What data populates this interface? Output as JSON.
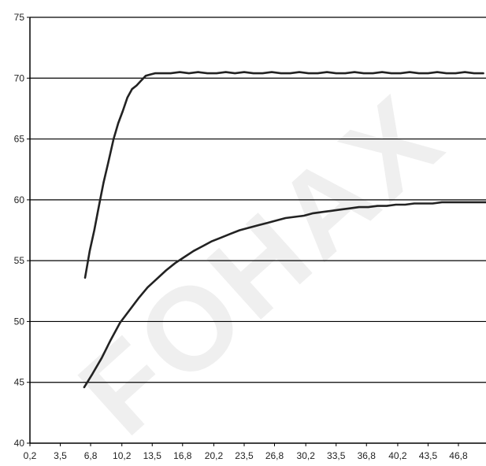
{
  "watermark": "FOHAX",
  "chart_data": {
    "type": "line",
    "title": "",
    "xlabel": "",
    "ylabel": "",
    "ylim": [
      40,
      75
    ],
    "y_ticks": [
      "40",
      "45",
      "50",
      "55",
      "60",
      "65",
      "70",
      "75"
    ],
    "y_tick_values": [
      40,
      45,
      50,
      55,
      60,
      65,
      70,
      75
    ],
    "x_ticks": [
      "0,2",
      "3,5",
      "6,8",
      "10,2",
      "13,5",
      "16,8",
      "20,2",
      "23,5",
      "26,8",
      "30,2",
      "33,5",
      "36,8",
      "40,2",
      "43,5",
      "46,8"
    ],
    "x_tick_values": [
      0.2,
      3.5,
      6.8,
      10.2,
      13.5,
      16.8,
      20.2,
      23.5,
      26.8,
      30.2,
      33.5,
      36.8,
      40.2,
      43.5,
      46.8
    ],
    "xlim": [
      0.2,
      49.8
    ],
    "grid": "horizontal",
    "legend": "none",
    "line_color": "#222222",
    "series": [
      {
        "x": [
          6.2,
          6.7,
          7.2,
          7.7,
          8.2,
          8.7,
          9.3,
          9.8,
          10.3,
          10.8,
          11.3,
          11.8,
          12.3,
          12.8,
          13.3,
          13.8,
          14.5,
          15.5,
          16.5,
          17.5,
          18.5,
          19.5,
          20.5,
          21.5,
          22.5,
          23.5,
          24.5,
          25.5,
          26.5,
          27.5,
          28.5,
          29.5,
          30.5,
          31.5,
          32.5,
          33.5,
          34.5,
          35.5,
          36.5,
          37.5,
          38.5,
          39.5,
          40.5,
          41.5,
          42.5,
          43.5,
          44.5,
          45.5,
          46.5,
          47.5,
          48.5,
          49.5
        ],
        "y": [
          53.6,
          55.8,
          57.5,
          59.5,
          61.4,
          63.0,
          65.0,
          66.3,
          67.3,
          68.4,
          69.1,
          69.4,
          69.8,
          70.2,
          70.3,
          70.4,
          70.4,
          70.4,
          70.5,
          70.4,
          70.5,
          70.4,
          70.4,
          70.5,
          70.4,
          70.5,
          70.4,
          70.4,
          70.5,
          70.4,
          70.4,
          70.5,
          70.4,
          70.4,
          70.5,
          70.4,
          70.4,
          70.5,
          70.4,
          70.4,
          70.5,
          70.4,
          70.4,
          70.5,
          70.4,
          70.4,
          70.5,
          70.4,
          70.4,
          70.5,
          70.4,
          70.4
        ]
      },
      {
        "x": [
          6.1,
          7,
          8,
          9,
          10,
          11,
          12,
          13,
          14,
          15,
          16,
          17,
          18,
          19,
          20,
          21,
          22,
          23,
          24,
          25,
          26,
          27,
          28,
          29,
          30,
          31,
          32,
          33,
          34,
          35,
          36,
          37,
          38,
          39,
          40,
          41,
          42,
          43,
          44,
          45,
          46,
          47,
          48,
          49,
          49.8
        ],
        "y": [
          44.6,
          45.7,
          47.0,
          48.5,
          49.9,
          50.9,
          51.9,
          52.8,
          53.5,
          54.2,
          54.8,
          55.3,
          55.8,
          56.2,
          56.6,
          56.9,
          57.2,
          57.5,
          57.7,
          57.9,
          58.1,
          58.3,
          58.5,
          58.6,
          58.7,
          58.9,
          59.0,
          59.1,
          59.2,
          59.3,
          59.4,
          59.4,
          59.5,
          59.5,
          59.6,
          59.6,
          59.7,
          59.7,
          59.7,
          59.8,
          59.8,
          59.8,
          59.8,
          59.8,
          59.8
        ]
      }
    ]
  }
}
